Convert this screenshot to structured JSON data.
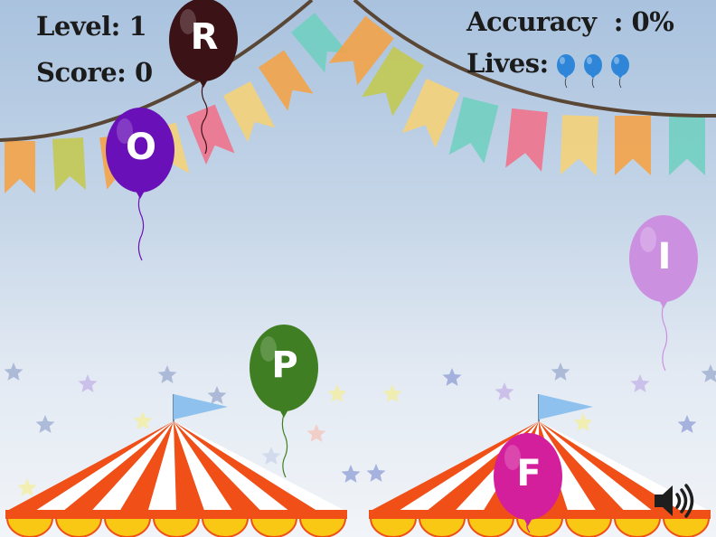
{
  "hud": {
    "level_label": "Level:",
    "level_value": "1",
    "score_label": "Score:",
    "score_value": "0",
    "accuracy_label": "Accuracy",
    "accuracy_separator": ":",
    "accuracy_value": "0%",
    "lives_label": "Lives:",
    "lives_count": 3,
    "life_icon": "blue-balloon-icon",
    "life_color": "#2f86d8"
  },
  "balloons": [
    {
      "letter": "R",
      "color": "#3b1216"
    },
    {
      "letter": "O",
      "color": "#6a10b8"
    },
    {
      "letter": "I",
      "color": "#cc90e0"
    },
    {
      "letter": "P",
      "color": "#3f7e23"
    },
    {
      "letter": "F",
      "color": "#d41f9c"
    }
  ],
  "sound": {
    "icon": "speaker-icon",
    "state": "on"
  },
  "palette": {
    "sky_top": "#a9c2de",
    "tent_red": "#f04f18",
    "tent_white": "#ffffff",
    "tent_scallop": "#f8c814",
    "flag_blue": "#8ec1ee",
    "bunting": [
      "#f5a244",
      "#c3c84e",
      "#f0718a",
      "#f6d275",
      "#6fcfbf"
    ]
  }
}
